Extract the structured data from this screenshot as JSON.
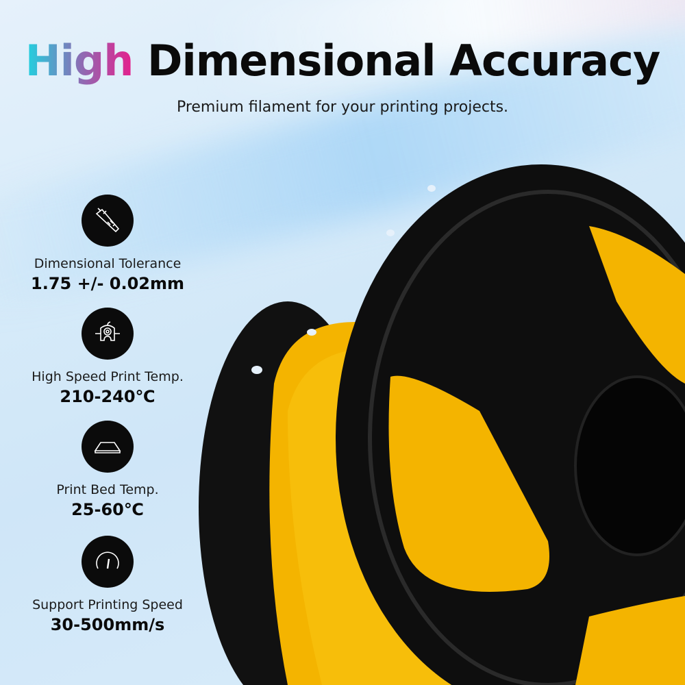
{
  "header": {
    "title_highlight": "High",
    "title_rest": "Dimensional Accuracy",
    "subtitle": "Premium filament for your printing projects."
  },
  "colors": {
    "filament": "#f6b800",
    "spool": "#0e0e0e",
    "gradient": [
      "#1fd3e0",
      "#8a6fb5",
      "#e61f8c"
    ]
  },
  "features": [
    {
      "icon": "caliper-icon",
      "label": "Dimensional Tolerance",
      "value": "1.75 +/- 0.02mm"
    },
    {
      "icon": "nozzle-icon",
      "label": "High Speed Print Temp.",
      "value": "210-240℃"
    },
    {
      "icon": "print-bed-icon",
      "label": "Print Bed Temp.",
      "value": "25-60℃"
    },
    {
      "icon": "speedometer-icon",
      "label": "Support Printing Speed",
      "value": "30-500mm/s"
    }
  ]
}
